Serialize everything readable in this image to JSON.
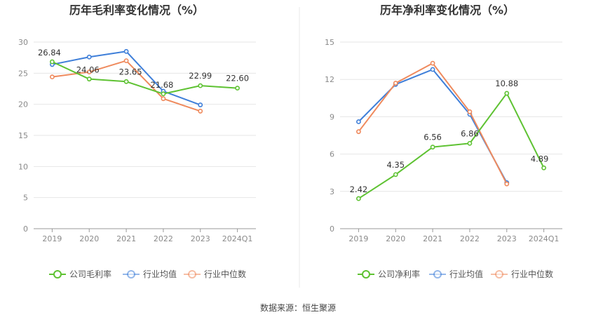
{
  "source": "数据来源：恒生聚源",
  "colors": {
    "company": "#5ec232",
    "avg": "#3f7fd9",
    "median": "#ef8a5d",
    "grid": "#e6e6e6",
    "axis": "#999999",
    "divider": "#e8e8e8"
  },
  "chart_data": [
    {
      "type": "line",
      "title": "历年毛利率变化情况（%）",
      "categories": [
        "2019",
        "2020",
        "2021",
        "2022",
        "2023",
        "2024Q1"
      ],
      "ylim": [
        0,
        30
      ],
      "yticks": [
        0,
        5,
        10,
        15,
        20,
        25,
        30
      ],
      "grid": true,
      "legend_position": "bottom",
      "series": [
        {
          "name": "公司毛利率",
          "color": "#5ec232",
          "values": [
            26.84,
            24.06,
            23.65,
            21.68,
            22.99,
            22.6
          ],
          "labels": [
            "26.84",
            "24.06",
            "23.65",
            "21.68",
            "22.99",
            "22.60"
          ]
        },
        {
          "name": "行业均值",
          "color": "#3f7fd9",
          "values": [
            26.4,
            27.6,
            28.5,
            22.1,
            19.9,
            null
          ]
        },
        {
          "name": "行业中位数",
          "color": "#ef8a5d",
          "values": [
            24.4,
            25.2,
            27.0,
            20.9,
            18.9,
            null
          ]
        }
      ]
    },
    {
      "type": "line",
      "title": "历年净利率变化情况（%）",
      "categories": [
        "2019",
        "2020",
        "2021",
        "2022",
        "2023",
        "2024Q1"
      ],
      "ylim": [
        0,
        15
      ],
      "yticks": [
        0,
        3,
        6,
        9,
        12,
        15
      ],
      "grid": true,
      "legend_position": "bottom",
      "series": [
        {
          "name": "公司净利率",
          "color": "#5ec232",
          "values": [
            2.42,
            4.35,
            6.56,
            6.86,
            10.88,
            4.89
          ],
          "labels": [
            "2.42",
            "4.35",
            "6.56",
            "6.86",
            "10.88",
            "4.89"
          ]
        },
        {
          "name": "行业均值",
          "color": "#3f7fd9",
          "values": [
            8.6,
            11.6,
            12.8,
            9.2,
            3.7,
            null
          ]
        },
        {
          "name": "行业中位数",
          "color": "#ef8a5d",
          "values": [
            7.8,
            11.7,
            13.3,
            9.4,
            3.6,
            null
          ]
        }
      ]
    }
  ]
}
